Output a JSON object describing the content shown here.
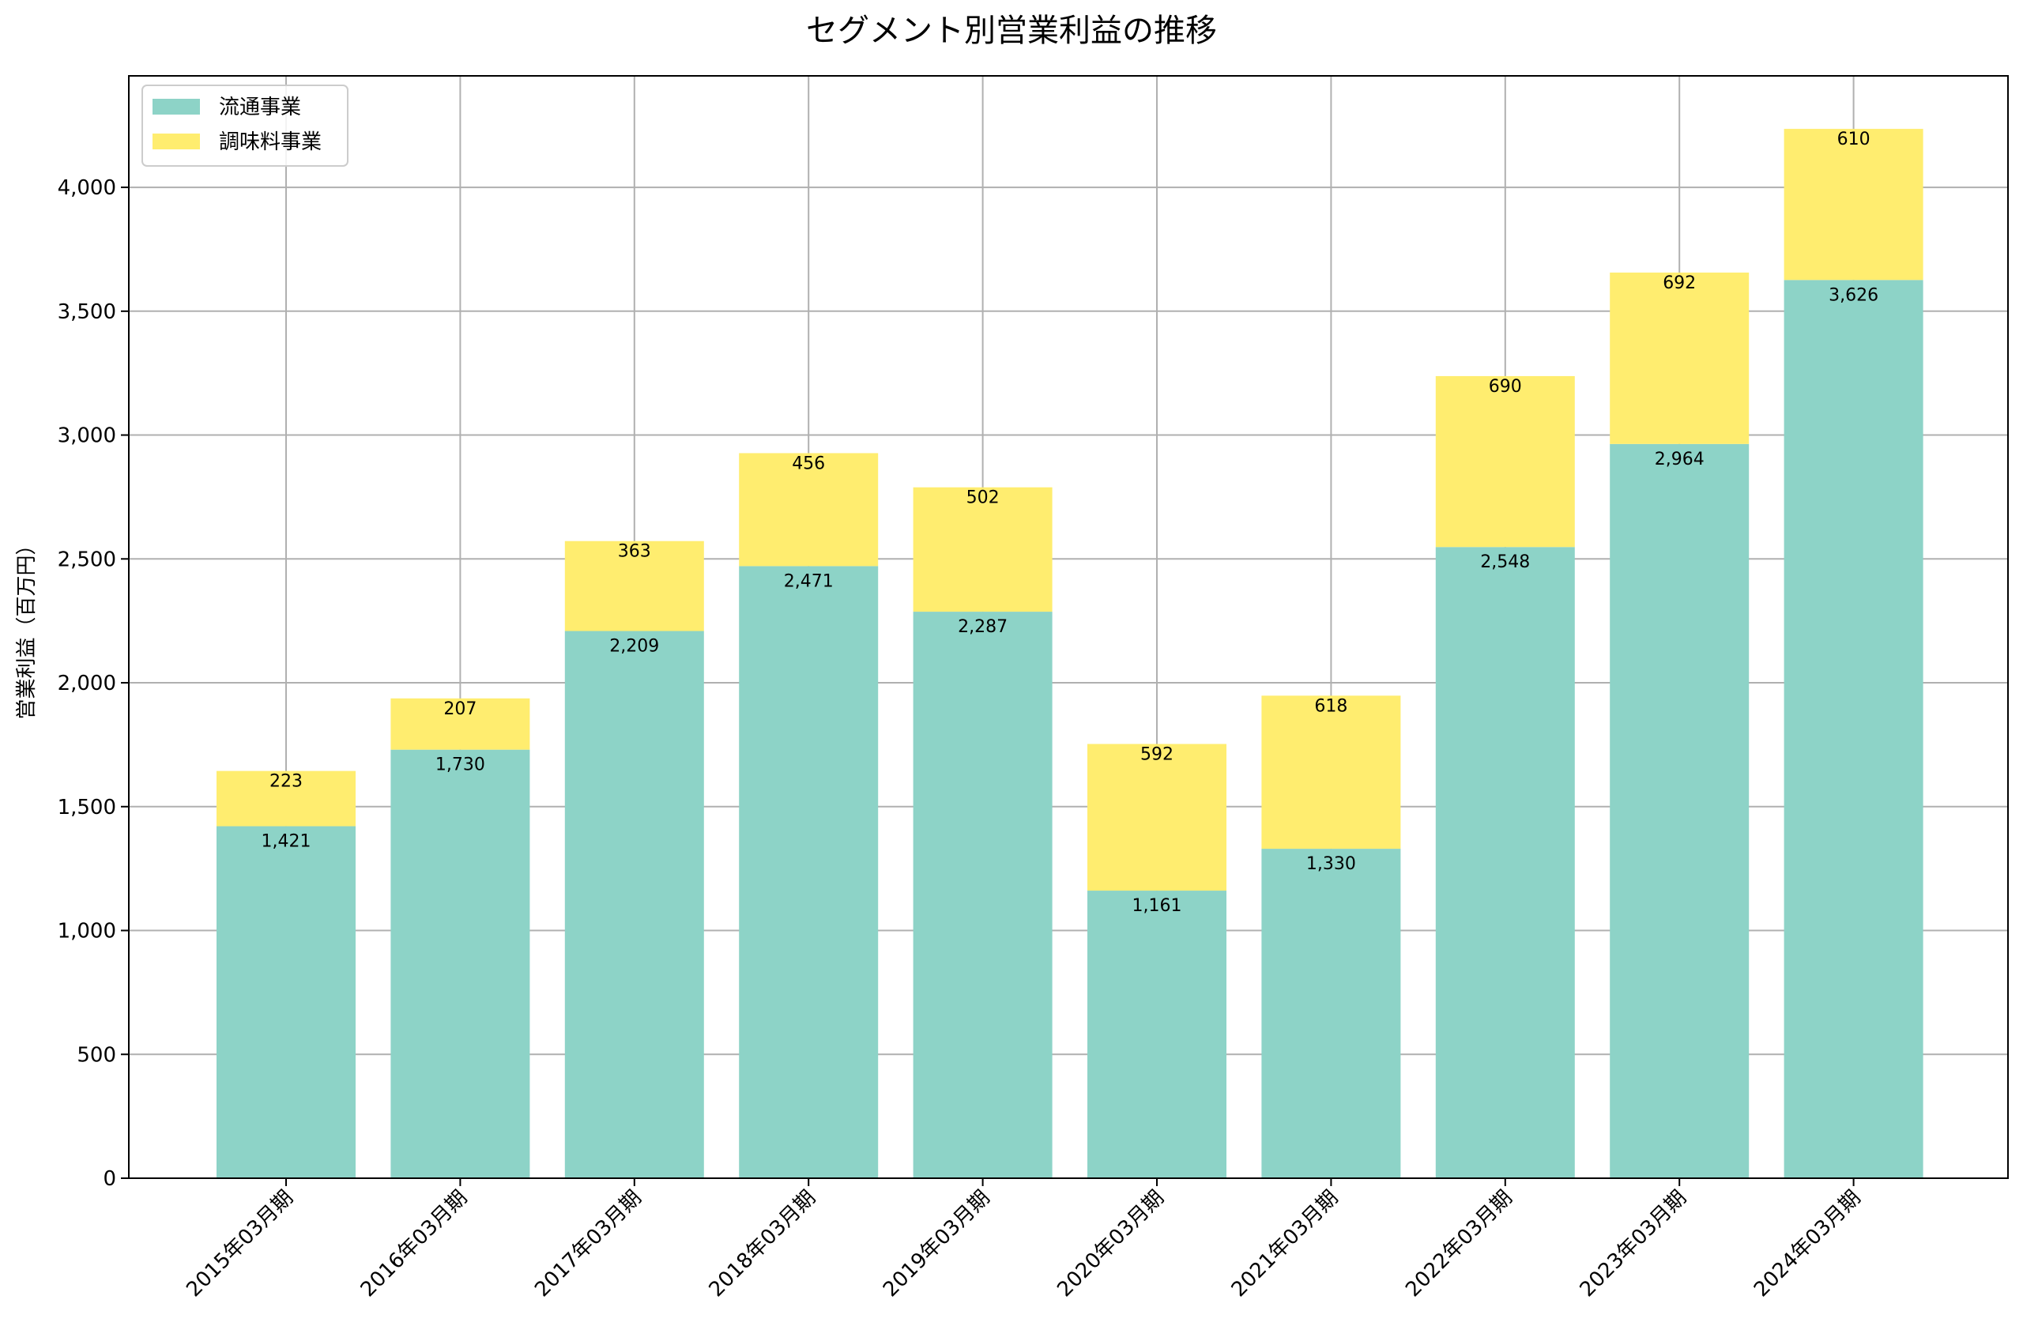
{
  "chart_data": {
    "type": "bar",
    "stacked": true,
    "title": "セグメント別営業利益の推移",
    "ylabel": "営業利益（百万円）",
    "xlabel": "",
    "ylim": [
      0,
      4450
    ],
    "yticks": [
      0,
      500,
      1000,
      1500,
      2000,
      2500,
      3000,
      3500,
      4000
    ],
    "ytick_labels": [
      "0",
      "500",
      "1,000",
      "1,500",
      "2,000",
      "2,500",
      "3,000",
      "3,500",
      "4,000"
    ],
    "grid": true,
    "legend_position": "upper-left",
    "categories": [
      "2015年03月期",
      "2016年03月期",
      "2017年03月期",
      "2018年03月期",
      "2019年03月期",
      "2020年03月期",
      "2021年03月期",
      "2022年03月期",
      "2023年03月期",
      "2024年03月期"
    ],
    "series": [
      {
        "name": "流通事業",
        "color": "#8dd3c7",
        "values": [
          1421,
          1730,
          2209,
          2471,
          2287,
          1161,
          1330,
          2548,
          2964,
          3626
        ],
        "labels": [
          "1,421",
          "1,730",
          "2,209",
          "2,471",
          "2,287",
          "1,161",
          "1,330",
          "2,548",
          "2,964",
          "3,626"
        ]
      },
      {
        "name": "調味料事業",
        "color": "#ffed6f",
        "values": [
          223,
          207,
          363,
          456,
          502,
          592,
          618,
          690,
          692,
          610
        ],
        "labels": [
          "223",
          "207",
          "363",
          "456",
          "502",
          "592",
          "618",
          "690",
          "692",
          "610"
        ]
      }
    ]
  }
}
